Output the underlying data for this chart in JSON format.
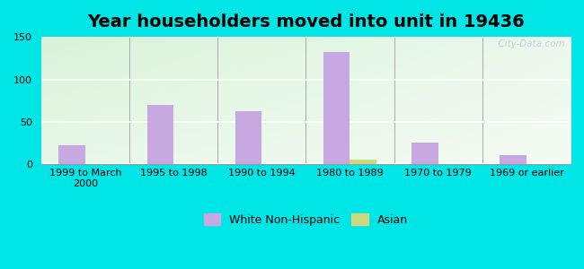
{
  "title": "Year householders moved into unit in 19436",
  "categories": [
    "1999 to March\n2000",
    "1995 to 1998",
    "1990 to 1994",
    "1980 to 1989",
    "1970 to 1979",
    "1969 or earlier"
  ],
  "white_non_hispanic": [
    23,
    70,
    63,
    132,
    26,
    11
  ],
  "asian": [
    0,
    0,
    0,
    6,
    0,
    0
  ],
  "white_color": "#c8a8e0",
  "asian_color": "#cdd882",
  "background_outer": "#00e5e5",
  "ylim": [
    0,
    150
  ],
  "yticks": [
    0,
    50,
    100,
    150
  ],
  "bar_width": 0.3,
  "title_fontsize": 14,
  "tick_fontsize": 8,
  "legend_fontsize": 9,
  "watermark": "  City-Data.com"
}
